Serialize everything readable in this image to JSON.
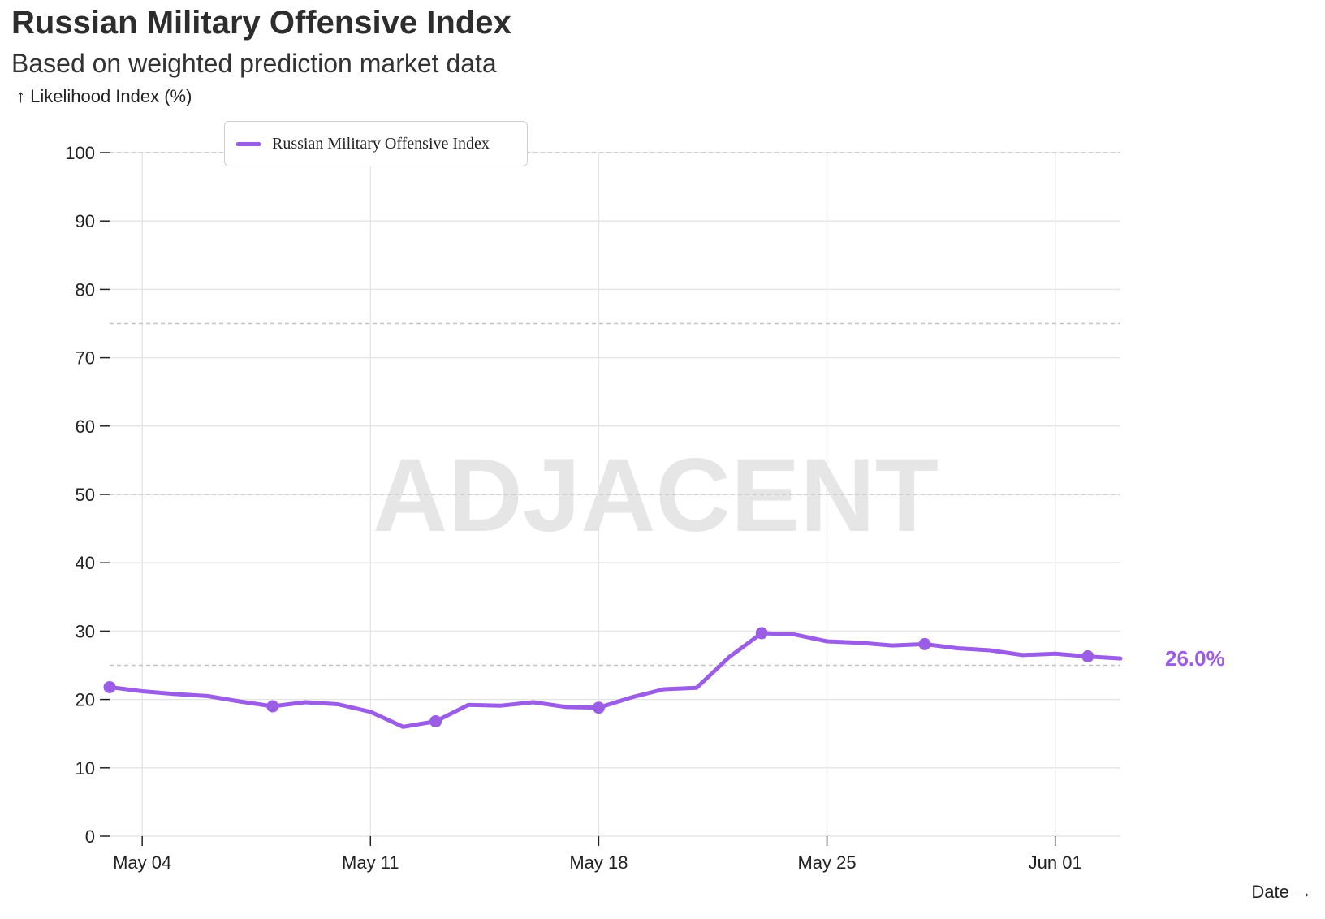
{
  "header": {
    "title": "Russian Military Offensive Index",
    "subtitle": "Based on weighted prediction market data"
  },
  "axes": {
    "y_label": "↑ Likelihood Index (%)",
    "x_label": "Date →"
  },
  "legend": {
    "label": "Russian Military Offensive Index"
  },
  "watermark": "ADJACENT",
  "end_label": "26.0%",
  "colors": {
    "series": "#9b5de5",
    "grid": "#e6e6e6",
    "ref_line": "#c4c4c4",
    "watermark": "#e6e6e6"
  },
  "chart_data": {
    "type": "line",
    "title": "Russian Military Offensive Index",
    "subtitle": "Based on weighted prediction market data",
    "xlabel": "Date",
    "ylabel": "Likelihood Index (%)",
    "ylim": [
      0,
      100
    ],
    "y_ticks": [
      "0",
      "10",
      "20",
      "30",
      "40",
      "50",
      "60",
      "70",
      "80",
      "90",
      "100"
    ],
    "x_ticks": [
      {
        "date": "2025-05-04",
        "label": "May 04"
      },
      {
        "date": "2025-05-11",
        "label": "May 11"
      },
      {
        "date": "2025-05-18",
        "label": "May 18"
      },
      {
        "date": "2025-05-25",
        "label": "May 25"
      },
      {
        "date": "2025-06-01",
        "label": "Jun 01"
      }
    ],
    "x_range": [
      "2025-05-03",
      "2025-06-03"
    ],
    "reference_lines": [
      25,
      50,
      75,
      100
    ],
    "grid": true,
    "legend_position": "top-left",
    "series": [
      {
        "name": "Russian Military Offensive Index",
        "color": "#9b5de5",
        "points": [
          {
            "date": "2025-05-03",
            "value": 21.8,
            "marker": true
          },
          {
            "date": "2025-05-04",
            "value": 21.2
          },
          {
            "date": "2025-05-05",
            "value": 20.8
          },
          {
            "date": "2025-05-06",
            "value": 20.5
          },
          {
            "date": "2025-05-07",
            "value": 19.7
          },
          {
            "date": "2025-05-08",
            "value": 19.0,
            "marker": true
          },
          {
            "date": "2025-05-09",
            "value": 19.6
          },
          {
            "date": "2025-05-10",
            "value": 19.3
          },
          {
            "date": "2025-05-11",
            "value": 18.2
          },
          {
            "date": "2025-05-12",
            "value": 16.0
          },
          {
            "date": "2025-05-13",
            "value": 16.8,
            "marker": true
          },
          {
            "date": "2025-05-14",
            "value": 19.2
          },
          {
            "date": "2025-05-15",
            "value": 19.1
          },
          {
            "date": "2025-05-16",
            "value": 19.6
          },
          {
            "date": "2025-05-17",
            "value": 18.9
          },
          {
            "date": "2025-05-18",
            "value": 18.8,
            "marker": true
          },
          {
            "date": "2025-05-19",
            "value": 20.3
          },
          {
            "date": "2025-05-20",
            "value": 21.5
          },
          {
            "date": "2025-05-21",
            "value": 21.7
          },
          {
            "date": "2025-05-22",
            "value": 26.2
          },
          {
            "date": "2025-05-23",
            "value": 29.7,
            "marker": true
          },
          {
            "date": "2025-05-24",
            "value": 29.5
          },
          {
            "date": "2025-05-25",
            "value": 28.5
          },
          {
            "date": "2025-05-26",
            "value": 28.3
          },
          {
            "date": "2025-05-27",
            "value": 27.9
          },
          {
            "date": "2025-05-28",
            "value": 28.1,
            "marker": true
          },
          {
            "date": "2025-05-29",
            "value": 27.5
          },
          {
            "date": "2025-05-30",
            "value": 27.2
          },
          {
            "date": "2025-05-31",
            "value": 26.5
          },
          {
            "date": "2025-06-01",
            "value": 26.7
          },
          {
            "date": "2025-06-02",
            "value": 26.3,
            "marker": true
          },
          {
            "date": "2025-06-03",
            "value": 26.0
          }
        ]
      }
    ]
  }
}
